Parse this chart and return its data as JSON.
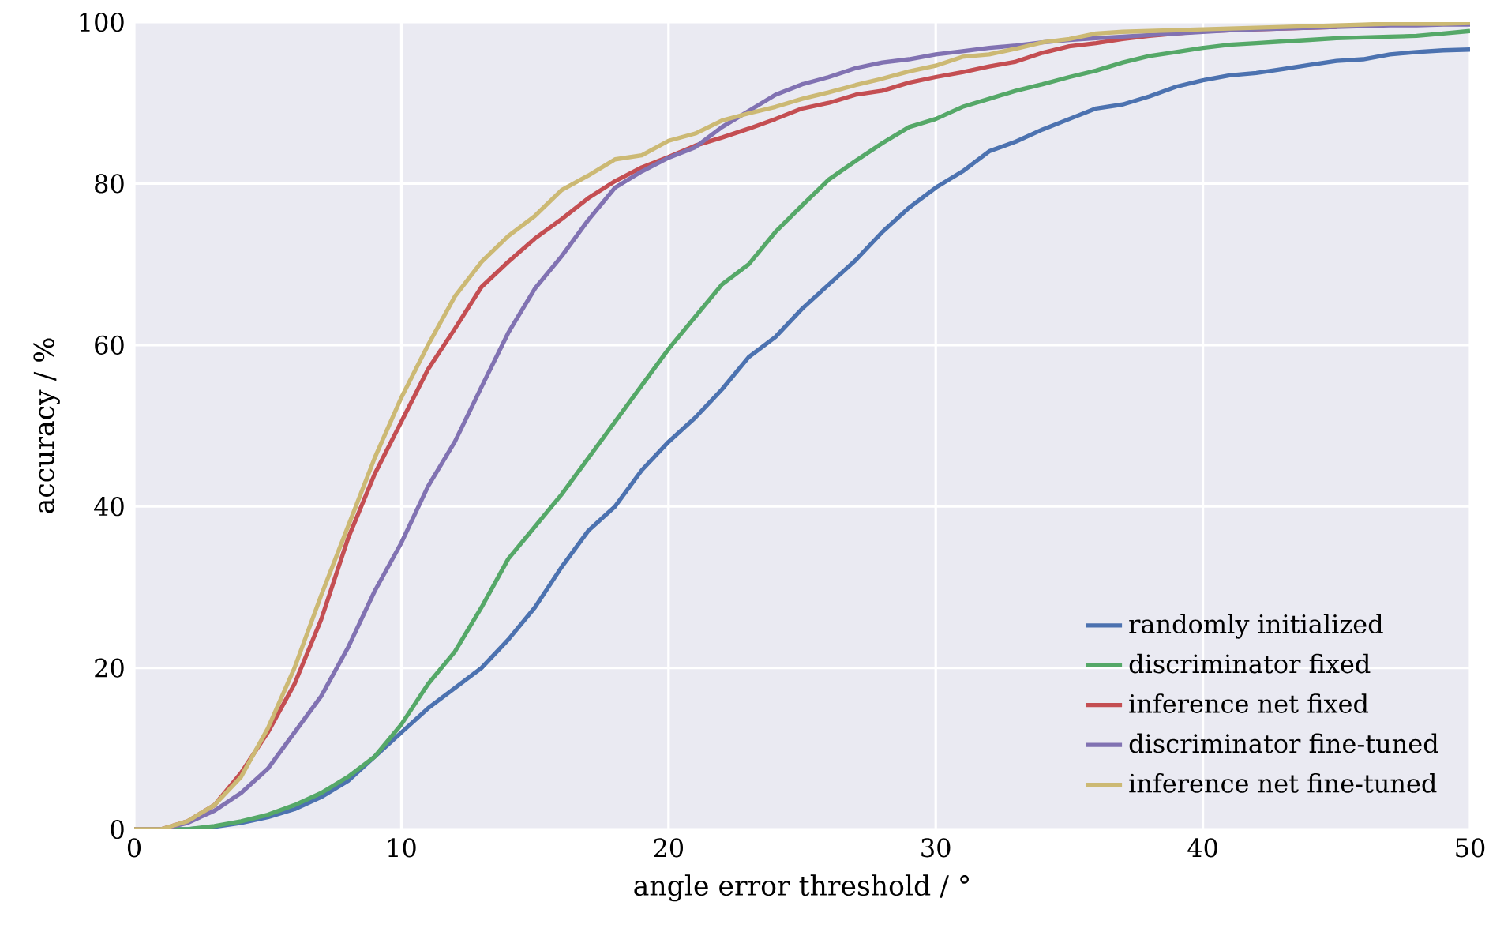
{
  "chart_data": {
    "type": "line",
    "xlabel": "angle error threshold / °",
    "ylabel": "accuracy / %",
    "xlim": [
      0,
      50
    ],
    "ylim": [
      0,
      100
    ],
    "xticks": [
      0,
      10,
      20,
      30,
      40,
      50
    ],
    "yticks": [
      0,
      20,
      40,
      60,
      80,
      100
    ],
    "grid": true,
    "legend": "bottom right",
    "line_style": "solid",
    "x": [
      0,
      1,
      2,
      3,
      4,
      5,
      6,
      7,
      8,
      9,
      10,
      11,
      12,
      13,
      14,
      15,
      16,
      17,
      18,
      19,
      20,
      21,
      22,
      23,
      24,
      25,
      26,
      27,
      28,
      29,
      30,
      31,
      32,
      33,
      34,
      35,
      36,
      37,
      38,
      39,
      40,
      41,
      42,
      43,
      44,
      45,
      46,
      47,
      48,
      49,
      50
    ],
    "series": [
      {
        "name": "randomly initialized",
        "color": "#4c72b0",
        "values": [
          0,
          0,
          0,
          0.3,
          0.8,
          1.5,
          2.5,
          4,
          6,
          9,
          12,
          15,
          17.5,
          20,
          23.5,
          27.5,
          32.5,
          37,
          40,
          44.5,
          48,
          51,
          54.5,
          58.5,
          61,
          64.5,
          67.5,
          70.5,
          74,
          77,
          79.5,
          81.5,
          84,
          85.2,
          86.7,
          88,
          89.3,
          89.8,
          90.8,
          92,
          92.8,
          93.4,
          93.7,
          94.2,
          94.7,
          95.2,
          95.4,
          96,
          96.3,
          96.5,
          96.6
        ]
      },
      {
        "name": "discriminator fixed",
        "color": "#55a868",
        "values": [
          0,
          0,
          0,
          0.4,
          1,
          1.8,
          3,
          4.5,
          6.5,
          9,
          13,
          18,
          22,
          27.5,
          33.5,
          37.5,
          41.5,
          46,
          50.5,
          55,
          59.5,
          63.5,
          67.5,
          70,
          74,
          77.3,
          80.5,
          82.8,
          85,
          87,
          88,
          89.5,
          90.5,
          91.5,
          92.3,
          93.2,
          94,
          95,
          95.8,
          96.3,
          96.8,
          97.2,
          97.4,
          97.6,
          97.8,
          98,
          98.1,
          98.2,
          98.3,
          98.6,
          98.9
        ]
      },
      {
        "name": "inference net fixed",
        "color": "#c44e52",
        "values": [
          0,
          0,
          1,
          3,
          7,
          12,
          18,
          26,
          36,
          44,
          50.5,
          57,
          62,
          67.2,
          70.3,
          73.2,
          75.6,
          78.2,
          80.3,
          82,
          83.3,
          84.7,
          85.7,
          86.8,
          88,
          89.3,
          90,
          91,
          91.5,
          92.5,
          93.2,
          93.8,
          94.5,
          95.1,
          96.2,
          97,
          97.4,
          97.9,
          98.3,
          98.6,
          98.9,
          99,
          99.1,
          99.2,
          99.3,
          99.4,
          null,
          null,
          null,
          null,
          null
        ]
      },
      {
        "name": "discriminator fine-tuned",
        "color": "#8172b2",
        "values": [
          0,
          0,
          0.8,
          2.3,
          4.5,
          7.5,
          12,
          16.5,
          22.5,
          29.5,
          35.5,
          42.5,
          48,
          54.8,
          61.5,
          67,
          71,
          75.5,
          79.5,
          81.5,
          83.2,
          84.5,
          87,
          89,
          91,
          92.3,
          93.2,
          94.3,
          95,
          95.4,
          96,
          96.4,
          96.8,
          97.1,
          97.5,
          97.8,
          98,
          98.2,
          98.4,
          98.6,
          98.8,
          99,
          99.1,
          99.2,
          99.3,
          99.4,
          99.5,
          99.6,
          99.6,
          99.7,
          99.7
        ]
      },
      {
        "name": "inference net fine-tuned",
        "color": "#ccb974",
        "values": [
          0,
          0,
          1,
          3,
          6.5,
          12.5,
          20,
          29,
          37.5,
          46,
          53.5,
          60,
          66,
          70.3,
          73.5,
          76,
          79.2,
          81,
          83,
          83.5,
          85.3,
          86.2,
          87.8,
          88.7,
          89.5,
          90.5,
          91.3,
          92.2,
          93,
          93.9,
          94.6,
          95.7,
          96,
          96.7,
          97.5,
          97.9,
          98.6,
          98.8,
          98.9,
          99,
          99.1,
          99.2,
          99.3,
          99.4,
          99.5,
          99.6,
          99.7,
          99.8,
          99.8,
          99.8,
          99.9
        ]
      }
    ]
  }
}
